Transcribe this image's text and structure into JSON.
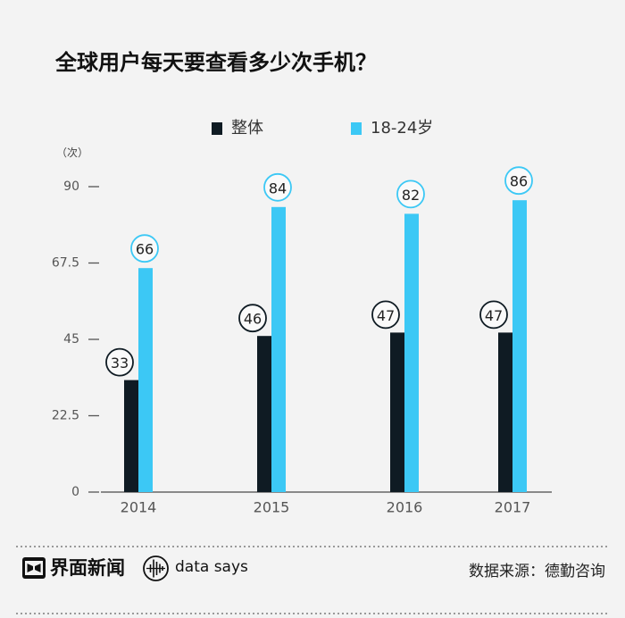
{
  "chart_data": {
    "type": "bar",
    "title": "全球用户每天要查看多少次手机？",
    "ylabel": "（次）",
    "categories": [
      "2014",
      "2015",
      "2016",
      "2017"
    ],
    "series": [
      {
        "name": "整体",
        "values": [
          33,
          46,
          47,
          47
        ],
        "color": "#0f1b23"
      },
      {
        "name": "18-24岁",
        "values": [
          66,
          84,
          82,
          86
        ],
        "color": "#3cc8f5"
      }
    ],
    "ylim": [
      0,
      90
    ],
    "yticks": [
      0,
      22.5,
      45,
      67.5,
      90
    ],
    "grid": false,
    "legend_position": "top-center"
  },
  "footer": {
    "brand_icon": "jiemian-logo-icon",
    "brand_name": "界面新闻",
    "sub_brand_icon": "data-says-icon",
    "sub_brand_name": "data says",
    "source": "数据来源：德勤咨询"
  },
  "colors": {
    "background": "#f3f3f3",
    "axis": "#666666"
  }
}
